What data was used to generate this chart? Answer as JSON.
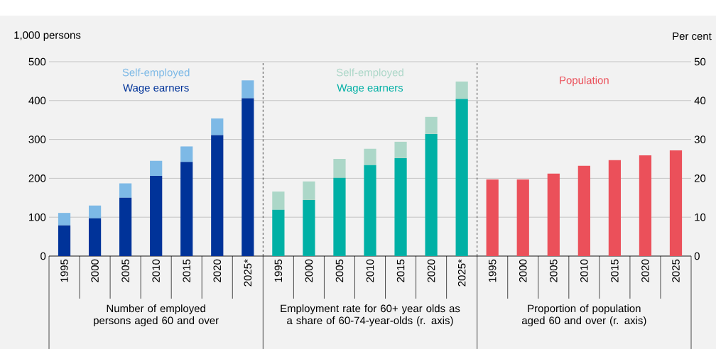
{
  "chart_data": {
    "type": "bar",
    "stacked": true,
    "ylabel": "1,000 persons",
    "y2label": "Per cent",
    "categories": [
      "1995",
      "2000",
      "2005",
      "2010",
      "2015",
      "2020",
      "2025*",
      "1995",
      "2000",
      "2005",
      "2010",
      "2015",
      "2020",
      "2025*",
      "1995",
      "2000",
      "2005",
      "2010",
      "2015",
      "2020",
      "2025"
    ],
    "series": [
      {
        "name": "Wage earners",
        "color": "#003399",
        "axis": "y",
        "values": [
          79,
          97,
          150,
          206,
          242,
          311,
          406,
          null,
          null,
          null,
          null,
          null,
          null,
          null,
          null,
          null,
          null,
          null,
          null,
          null,
          null
        ]
      },
      {
        "name": "Self-employed",
        "color": "#7db9e6",
        "axis": "y",
        "values": [
          32,
          33,
          37,
          39,
          40,
          43,
          46,
          null,
          null,
          null,
          null,
          null,
          null,
          null,
          null,
          null,
          null,
          null,
          null,
          null,
          null
        ]
      },
      {
        "name": "Wage earners",
        "color": "#00b0a5",
        "axis": "y2",
        "values": [
          null,
          null,
          null,
          null,
          null,
          null,
          null,
          11.9,
          14.4,
          20.1,
          23.4,
          25.2,
          31.4,
          40.4,
          null,
          null,
          null,
          null,
          null,
          null,
          null
        ]
      },
      {
        "name": "Self-employed",
        "color": "#acd7c8",
        "axis": "y2",
        "values": [
          null,
          null,
          null,
          null,
          null,
          null,
          null,
          4.7,
          4.8,
          4.9,
          4.2,
          4.2,
          4.4,
          4.5,
          null,
          null,
          null,
          null,
          null,
          null,
          null
        ]
      },
      {
        "name": "Population",
        "color": "#eb505a",
        "axis": "y2",
        "values": [
          null,
          null,
          null,
          null,
          null,
          null,
          null,
          null,
          null,
          null,
          null,
          null,
          null,
          null,
          19.7,
          19.7,
          21.2,
          23.2,
          24.7,
          25.9,
          27.2
        ]
      }
    ],
    "ylim": [
      0,
      500
    ],
    "yticks": [
      0,
      100,
      200,
      300,
      400,
      500
    ],
    "y2lim": [
      0,
      50
    ],
    "y2ticks": [
      0,
      10,
      20,
      30,
      40,
      50
    ],
    "grid": "y",
    "annotations": [
      "Number of employed persons aged 60 and over",
      "Employment rate for 60+ year olds as a share of 60-74-year-olds (r. axis)",
      "Proportion of population aged 60 and over (r. axis)"
    ]
  }
}
